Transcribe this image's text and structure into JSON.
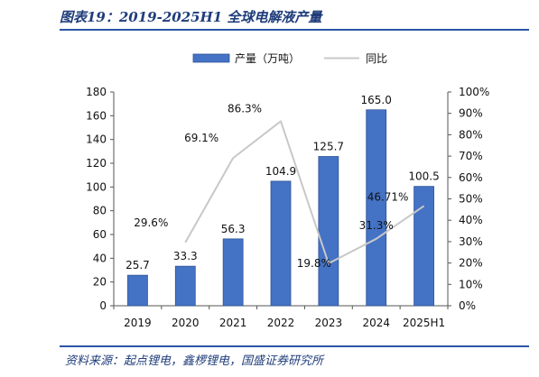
{
  "header": {
    "title": "图表19：2019-2025H1 全球电解液产量"
  },
  "footer": {
    "source": "资料来源：起点锂电，鑫椤锂电，国盛证券研究所"
  },
  "colors": {
    "bar": "#4472c4",
    "bar_edge": "#2f5597",
    "line": "#c8c8c8",
    "rule": "#2b55a6",
    "title": "#1f3d7a"
  },
  "chart_data": {
    "type": "bar",
    "categories": [
      "2019",
      "2020",
      "2021",
      "2022",
      "2023",
      "2024",
      "2025H1"
    ],
    "series": [
      {
        "name": "产量（万吨）",
        "type": "bar",
        "axis": "left",
        "values": [
          25.7,
          33.3,
          56.3,
          104.9,
          125.7,
          165.0,
          100.5
        ],
        "labels": [
          "25.7",
          "33.3",
          "56.3",
          "104.9",
          "125.7",
          "165.0",
          "100.5"
        ]
      },
      {
        "name": "同比",
        "type": "line",
        "axis": "right",
        "values": [
          null,
          29.6,
          69.1,
          86.3,
          19.8,
          31.3,
          46.71
        ],
        "labels": [
          "",
          "29.6%",
          "69.1%",
          "86.3%",
          "19.8%",
          "31.3%",
          "46.71%"
        ]
      }
    ],
    "y_left": {
      "min": 0,
      "max": 180,
      "step": 20,
      "ticks": [
        "0",
        "20",
        "40",
        "60",
        "80",
        "100",
        "120",
        "140",
        "160",
        "180"
      ]
    },
    "y_right": {
      "min": 0,
      "max": 100,
      "step": 10,
      "ticks": [
        "0%",
        "10%",
        "20%",
        "30%",
        "40%",
        "50%",
        "60%",
        "70%",
        "80%",
        "90%",
        "100%"
      ]
    },
    "legend": {
      "position": "top"
    },
    "grid": false
  }
}
